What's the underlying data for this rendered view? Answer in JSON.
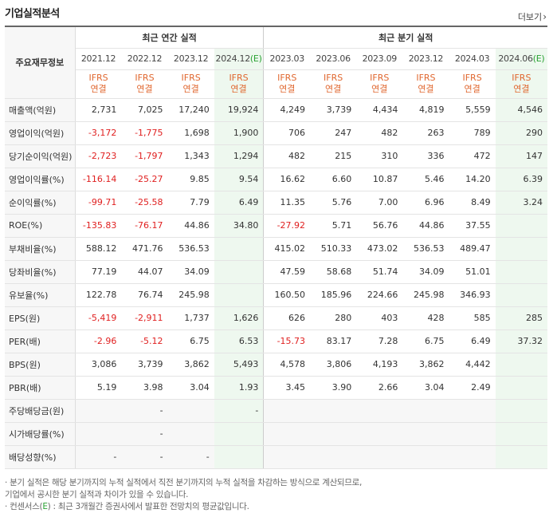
{
  "header": {
    "title": "기업실적분석",
    "more_label": "더보기",
    "more_chevron": "›"
  },
  "groups": {
    "annual": "최근 연간 실적",
    "quarterly": "최근 분기 실적"
  },
  "label_head": "주요재무정보",
  "periods": [
    "2021.12",
    "2022.12",
    "2023.12",
    "2024.12",
    "2023.03",
    "2023.06",
    "2023.09",
    "2023.12",
    "2024.03",
    "2024.06"
  ],
  "estimate_mark": "(E)",
  "ifrs": {
    "line1": "IFRS",
    "line2": "연결"
  },
  "rows": [
    {
      "label": "매출액(억원)",
      "values": [
        "2,731",
        "7,025",
        "17,240",
        "19,924",
        "4,249",
        "3,739",
        "4,434",
        "4,819",
        "5,559",
        "4,546"
      ]
    },
    {
      "label": "영업이익(억원)",
      "values": [
        "-3,172",
        "-1,775",
        "1,698",
        "1,900",
        "706",
        "247",
        "482",
        "263",
        "789",
        "290"
      ]
    },
    {
      "label": "당기순이익(억원)",
      "values": [
        "-2,723",
        "-1,797",
        "1,343",
        "1,294",
        "482",
        "215",
        "310",
        "336",
        "472",
        "147"
      ]
    },
    {
      "label": "영업이익률(%)",
      "values": [
        "-116.14",
        "-25.27",
        "9.85",
        "9.54",
        "16.62",
        "6.60",
        "10.87",
        "5.46",
        "14.20",
        "6.39"
      ]
    },
    {
      "label": "순이익률(%)",
      "values": [
        "-99.71",
        "-25.58",
        "7.79",
        "6.49",
        "11.35",
        "5.76",
        "7.00",
        "6.96",
        "8.49",
        "3.24"
      ]
    },
    {
      "label": "ROE(%)",
      "values": [
        "-135.83",
        "-76.17",
        "44.86",
        "34.80",
        "-27.92",
        "5.71",
        "56.76",
        "44.86",
        "37.55",
        ""
      ]
    },
    {
      "label": "부채비율(%)",
      "values": [
        "588.12",
        "471.76",
        "536.53",
        "",
        "415.02",
        "510.33",
        "473.02",
        "536.53",
        "489.47",
        ""
      ]
    },
    {
      "label": "당좌비율(%)",
      "values": [
        "77.19",
        "44.07",
        "34.09",
        "",
        "47.59",
        "58.68",
        "51.74",
        "34.09",
        "51.01",
        ""
      ]
    },
    {
      "label": "유보율(%)",
      "values": [
        "122.78",
        "76.74",
        "245.98",
        "",
        "160.50",
        "185.96",
        "224.66",
        "245.98",
        "346.93",
        ""
      ]
    },
    {
      "label": "EPS(원)",
      "values": [
        "-5,419",
        "-2,911",
        "1,737",
        "1,626",
        "626",
        "280",
        "403",
        "428",
        "585",
        "285"
      ]
    },
    {
      "label": "PER(배)",
      "values": [
        "-2.96",
        "-5.12",
        "6.75",
        "6.53",
        "-15.73",
        "83.17",
        "7.28",
        "6.75",
        "6.49",
        "37.32"
      ]
    },
    {
      "label": "BPS(원)",
      "values": [
        "3,086",
        "3,739",
        "3,862",
        "5,493",
        "4,578",
        "3,806",
        "4,193",
        "3,862",
        "4,442",
        ""
      ]
    },
    {
      "label": "PBR(배)",
      "values": [
        "5.19",
        "3.98",
        "3.04",
        "1.93",
        "3.45",
        "3.90",
        "2.66",
        "3.04",
        "2.49",
        ""
      ]
    },
    {
      "label": "주당배당금(원)",
      "values": [
        "",
        "-",
        "",
        "-",
        "",
        "",
        "",
        "",
        "",
        ""
      ]
    },
    {
      "label": "시가배당률(%)",
      "values": [
        "",
        "-",
        "",
        "",
        "",
        "",
        "",
        "",
        "",
        ""
      ]
    },
    {
      "label": "배당성향(%)",
      "values": [
        "-",
        "-",
        "-",
        "",
        "",
        "",
        "",
        "",
        "",
        ""
      ]
    }
  ],
  "notes": {
    "line1": "· 분기 실적은 해당 분기까지의 누적 실적에서 직전 분기까지의 누적 실적을 차감하는 방식으로 계산되므로,",
    "line2": "  기업에서 공시한 분기 실적과 차이가 있을 수 있습니다.",
    "line3_pre": "· 컨센서스(",
    "line3_mark": "E",
    "line3_post": ") : 최근 3개월간 증권사에서 발표한 전망치의 평균값입니다."
  }
}
